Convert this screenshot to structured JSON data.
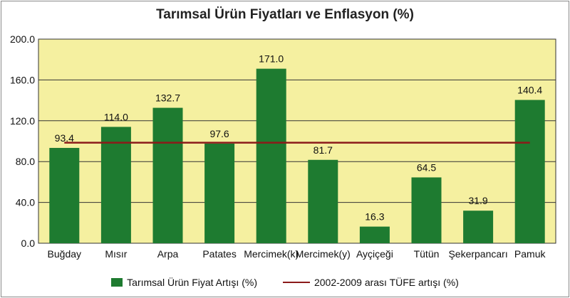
{
  "chart_data": {
    "type": "bar",
    "title": "Tarımsal Ürün Fiyatları ve Enflasyon (%)",
    "xlabel": "",
    "ylabel": "",
    "categories": [
      "Buğday",
      "Mısır",
      "Arpa",
      "Patates",
      "Mercimek(k)",
      "Mercimek(y)",
      "Ayçiçeği",
      "Tütün",
      "Şekerpancarı",
      "Pamuk"
    ],
    "series": [
      {
        "name": "Tarımsal Ürün Fiyat Artışı (%)",
        "type": "bar",
        "values": [
          93.4,
          114.0,
          132.7,
          97.6,
          171.0,
          81.7,
          16.3,
          64.5,
          31.9,
          140.4
        ],
        "labels": [
          "93.4",
          "114.0",
          "132.7",
          "97.6",
          "171.0",
          "81.7",
          "16.3",
          "64.5",
          "31.9",
          "140.4"
        ],
        "color": "#1e7b30"
      },
      {
        "name": "2002-2009 arası TÜFE artışı (%)",
        "type": "line",
        "value": 98.5,
        "color": "#8b1a1a"
      }
    ],
    "ylim": [
      0,
      200
    ],
    "yticks": [
      "0.0",
      "40.0",
      "80.0",
      "120.0",
      "160.0",
      "200.0"
    ],
    "ytick_values": [
      0,
      40,
      80,
      120,
      160,
      200
    ],
    "grid": true,
    "legend_position": "bottom",
    "plot_background": "#f5f0a0"
  }
}
